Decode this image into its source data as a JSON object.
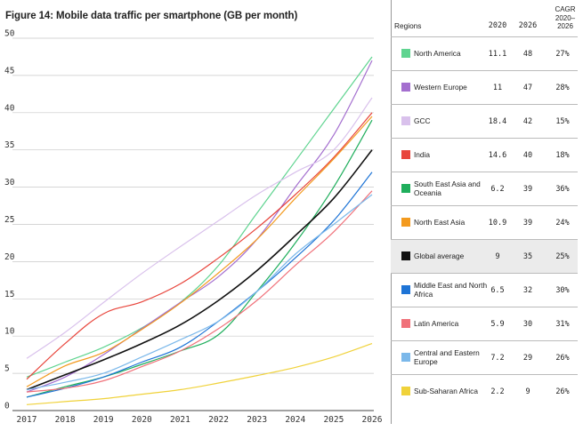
{
  "chart_data": {
    "type": "line",
    "title": "Figure 14: Mobile data traffic per smartphone (GB per month)",
    "xlabel": "",
    "ylabel": "",
    "x": [
      "2017",
      "2018",
      "2019",
      "2020",
      "2021",
      "2022",
      "2023",
      "2024",
      "2025",
      "2026"
    ],
    "ylim": [
      0,
      50
    ],
    "yticks": [
      0,
      5,
      10,
      15,
      20,
      25,
      30,
      35,
      40,
      45,
      50
    ],
    "grid": true,
    "series": [
      {
        "name": "North America",
        "color": "#5fd490",
        "values": [
          4.5,
          6.5,
          8.5,
          11.1,
          14.5,
          19.5,
          26.5,
          33.5,
          40.5,
          47.5
        ]
      },
      {
        "name": "Western Europe",
        "color": "#a46fcf",
        "values": [
          2.5,
          4.5,
          7.5,
          11,
          14.5,
          18,
          23,
          30,
          37,
          47
        ]
      },
      {
        "name": "GCC",
        "color": "#d9c1ec",
        "values": [
          7,
          10.5,
          14.5,
          18.4,
          22,
          25.5,
          29,
          32,
          35,
          42
        ]
      },
      {
        "name": "India",
        "color": "#e8453c",
        "values": [
          4.2,
          9,
          13,
          14.6,
          17,
          20.5,
          24.5,
          29,
          34,
          40
        ]
      },
      {
        "name": "South East Asia and Oceania",
        "color": "#1fae5c",
        "values": [
          1.8,
          3.2,
          4.5,
          6.2,
          8,
          10.2,
          16,
          22.5,
          30,
          39
        ]
      },
      {
        "name": "North East Asia",
        "color": "#f39a1e",
        "values": [
          3.2,
          6,
          7.8,
          10.9,
          14.4,
          18.5,
          23,
          28.5,
          33.8,
          39.5
        ]
      },
      {
        "name": "Global average",
        "color": "#111111",
        "values": [
          2.8,
          4.8,
          6.8,
          9,
          11.5,
          14.8,
          18.8,
          23.5,
          28.5,
          35
        ]
      },
      {
        "name": "Middle East and North Africa",
        "color": "#1e74d6",
        "values": [
          1.8,
          3,
          4.5,
          6.5,
          8.5,
          12,
          16,
          20.5,
          25.5,
          32
        ]
      },
      {
        "name": "Latin America",
        "color": "#f0717a",
        "values": [
          2.5,
          3,
          4,
          5.9,
          8,
          11,
          14.8,
          19.5,
          24,
          29.5
        ]
      },
      {
        "name": "Central and Eastern Europe",
        "color": "#7bb8ea",
        "values": [
          2.8,
          3.8,
          5,
          7.2,
          9.5,
          12,
          16,
          21,
          25,
          29
        ]
      },
      {
        "name": "Sub-Saharan Africa",
        "color": "#f0d23a",
        "values": [
          0.8,
          1.2,
          1.6,
          2.2,
          2.8,
          3.7,
          4.7,
          5.8,
          7.2,
          9
        ]
      }
    ]
  },
  "table": {
    "headers": {
      "regions": "Regions",
      "y2020": "2020",
      "y2026": "2026",
      "cagr": "CAGR 2020–2026"
    },
    "rows": [
      {
        "region": "North America",
        "v2020": "11.1",
        "v2026": "48",
        "cagr": "27%",
        "color": "#5fd490",
        "highlight": false
      },
      {
        "region": "Western Europe",
        "v2020": "11",
        "v2026": "47",
        "cagr": "28%",
        "color": "#a46fcf",
        "highlight": false
      },
      {
        "region": "GCC",
        "v2020": "18.4",
        "v2026": "42",
        "cagr": "15%",
        "color": "#d9c1ec",
        "highlight": false
      },
      {
        "region": "India",
        "v2020": "14.6",
        "v2026": "40",
        "cagr": "18%",
        "color": "#e8453c",
        "highlight": false
      },
      {
        "region": "South East Asia and Oceania",
        "v2020": "6.2",
        "v2026": "39",
        "cagr": "36%",
        "color": "#1fae5c",
        "highlight": false
      },
      {
        "region": "North East Asia",
        "v2020": "10.9",
        "v2026": "39",
        "cagr": "24%",
        "color": "#f39a1e",
        "highlight": false
      },
      {
        "region": "Global average",
        "v2020": "9",
        "v2026": "35",
        "cagr": "25%",
        "color": "#111111",
        "highlight": true
      },
      {
        "region": "Middle East and North Africa",
        "v2020": "6.5",
        "v2026": "32",
        "cagr": "30%",
        "color": "#1e74d6",
        "highlight": false
      },
      {
        "region": "Latin America",
        "v2020": "5.9",
        "v2026": "30",
        "cagr": "31%",
        "color": "#f0717a",
        "highlight": false
      },
      {
        "region": "Central and Eastern Europe",
        "v2020": "7.2",
        "v2026": "29",
        "cagr": "26%",
        "color": "#7bb8ea",
        "highlight": false
      },
      {
        "region": "Sub-Saharan Africa",
        "v2020": "2.2",
        "v2026": "9",
        "cagr": "26%",
        "color": "#f0d23a",
        "highlight": false
      }
    ]
  }
}
